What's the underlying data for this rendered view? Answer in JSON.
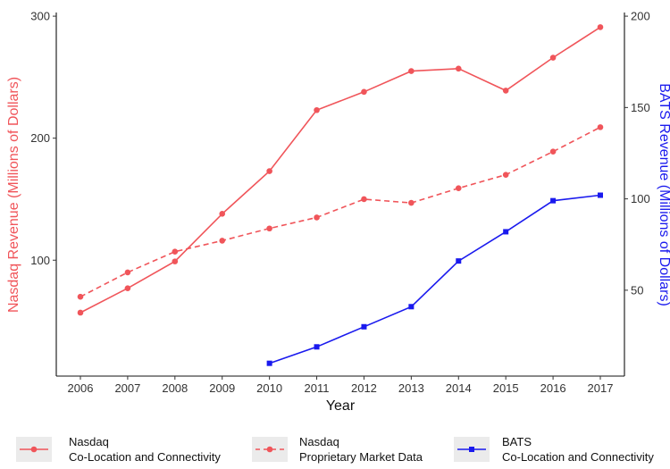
{
  "chart_data": {
    "type": "line",
    "xlabel": "Year",
    "ylabel_left": "Nasdaq Revenue (Millions of Dollars)",
    "ylabel_right": "BATS Revenue (Millions of Dollars)",
    "x": [
      2006,
      2007,
      2008,
      2009,
      2010,
      2011,
      2012,
      2013,
      2014,
      2015,
      2016,
      2017
    ],
    "xticks": [
      "2006",
      "2007",
      "2008",
      "2009",
      "2010",
      "2011",
      "2012",
      "2013",
      "2014",
      "2015",
      "2016",
      "2017"
    ],
    "ylim_left": [
      5,
      303
    ],
    "yticks_left": [
      100,
      200,
      300
    ],
    "ylim_right": [
      3,
      202
    ],
    "yticks_right": [
      50,
      100,
      150,
      200
    ],
    "grid": false,
    "legend_position": "bottom",
    "colors": {
      "nasdaq": "#f0555a",
      "bats": "#1a1aee",
      "left_axis_title": "#f0555a",
      "right_axis_title": "#1a1aee"
    },
    "series": [
      {
        "name": "Nasdaq\nCo-Location and Connectivity",
        "axis": "left",
        "line": "solid",
        "marker": "circle",
        "color": "#f0555a",
        "x": [
          2006,
          2007,
          2008,
          2009,
          2010,
          2011,
          2012,
          2013,
          2014,
          2015,
          2016,
          2017
        ],
        "values": [
          57,
          77,
          99,
          138,
          173,
          223,
          238,
          255,
          257,
          239,
          266,
          291
        ]
      },
      {
        "name": "Nasdaq\nProprietary Market Data",
        "axis": "left",
        "line": "dashed",
        "marker": "circle",
        "color": "#f0555a",
        "x": [
          2006,
          2007,
          2008,
          2009,
          2010,
          2011,
          2012,
          2013,
          2014,
          2015,
          2016,
          2017
        ],
        "values": [
          70,
          90,
          107,
          116,
          126,
          135,
          150,
          147,
          159,
          170,
          189,
          209
        ]
      },
      {
        "name": "BATS\nCo-Location and Connectivity",
        "axis": "right",
        "line": "solid",
        "marker": "square",
        "color": "#1a1aee",
        "x": [
          2010,
          2011,
          2012,
          2013,
          2014,
          2015,
          2016,
          2017
        ],
        "values": [
          10,
          19,
          30,
          41,
          66,
          82,
          99,
          102
        ]
      }
    ],
    "legend": [
      {
        "line1": "Nasdaq",
        "line2": "Co-Location and Connectivity"
      },
      {
        "line1": "Nasdaq",
        "line2": "Proprietary Market Data"
      },
      {
        "line1": "BATS",
        "line2": "Co-Location and Connectivity"
      }
    ]
  }
}
